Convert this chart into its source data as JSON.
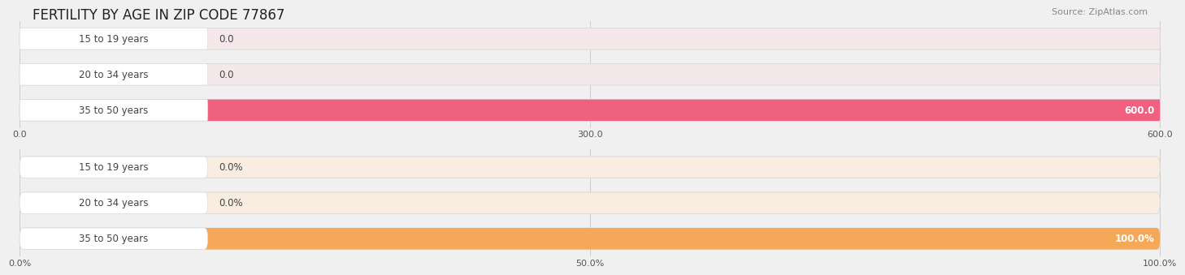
{
  "title": "FERTILITY BY AGE IN ZIP CODE 77867",
  "source": "Source: ZipAtlas.com",
  "top_chart": {
    "categories": [
      "15 to 19 years",
      "20 to 34 years",
      "35 to 50 years"
    ],
    "values": [
      0.0,
      0.0,
      600.0
    ],
    "max_val": 600.0,
    "bar_color": "#f06080",
    "bar_bg_color": "#f5e8ea",
    "label_color": "#444444",
    "tick_labels": [
      "0.0",
      "300.0",
      "600.0"
    ],
    "tick_values": [
      0.0,
      300.0,
      600.0
    ]
  },
  "bottom_chart": {
    "categories": [
      "15 to 19 years",
      "20 to 34 years",
      "35 to 50 years"
    ],
    "values": [
      0.0,
      0.0,
      100.0
    ],
    "max_val": 100.0,
    "bar_color": "#f5a858",
    "bar_bg_color": "#f8ede0",
    "label_color": "#444444",
    "tick_labels": [
      "0.0%",
      "50.0%",
      "100.0%"
    ],
    "tick_values": [
      0.0,
      50.0,
      100.0
    ]
  },
  "bg_color": "#f0f0f0",
  "bar_height": 0.6,
  "label_fontsize": 8.5,
  "tick_fontsize": 8,
  "title_fontsize": 12,
  "source_fontsize": 8
}
